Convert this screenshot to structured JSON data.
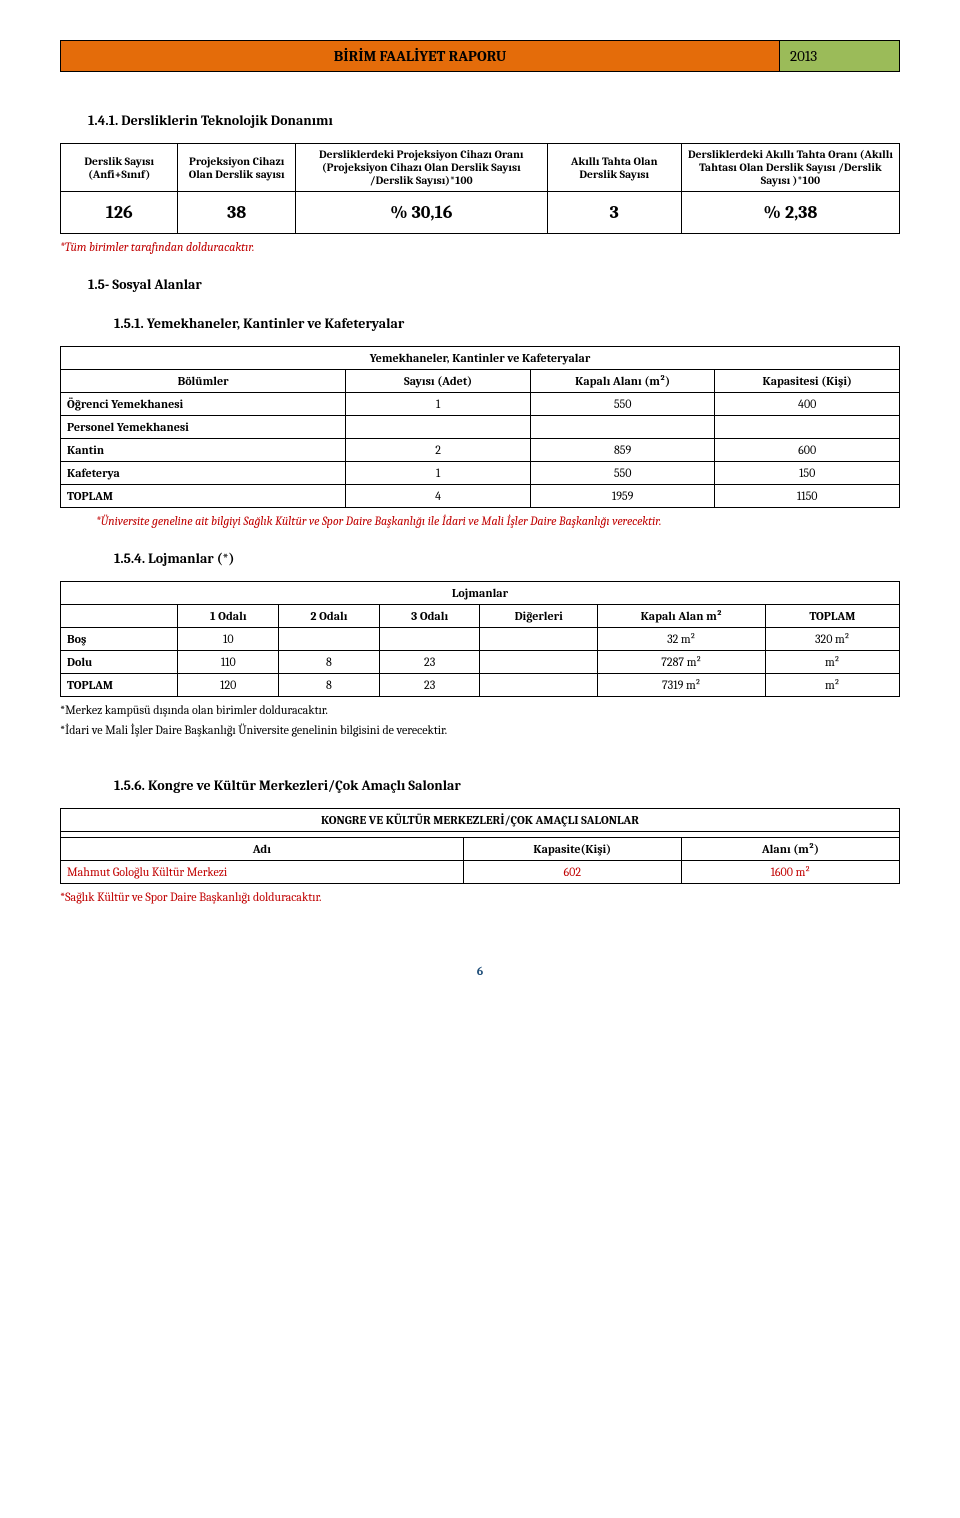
{
  "header": {
    "title": "BİRİM FAALİYET RAPORU",
    "year": "2013",
    "title_bg": "#e46c0a",
    "year_bg": "#9bbb59"
  },
  "sec1": {
    "heading": "1.4.1. Dersliklerin Teknolojik Donanımı",
    "headers": [
      "Derslik Sayısı (Anfi+Sınıf)",
      "Projeksiyon Cihazı Olan Derslik sayısı",
      "Dersliklerdeki Projeksiyon Cihazı Oranı (Projeksiyon Cihazı Olan Derslik Sayısı /Derslik Sayısı)*100",
      "Akıllı Tahta Olan Derslik Sayısı",
      "Dersliklerdeki Akıllı Tahta Oranı (Akıllı Tahtası Olan Derslik Sayısı /Derslik Sayısı )*100"
    ],
    "row": [
      "126",
      "38",
      "% 30,16",
      "3",
      "% 2,38"
    ],
    "note": "*Tüm birimler tarafından dolduracaktır."
  },
  "sec15": {
    "heading": "1.5- Sosyal Alanlar"
  },
  "sec151": {
    "heading": "1.5.1. Yemekhaneler, Kantinler ve Kafeteryalar",
    "caption": "Yemekhaneler, Kantinler ve Kafeteryalar",
    "cols": [
      "Bölümler",
      "Sayısı (Adet)",
      "Kapalı Alanı (m²)",
      "Kapasitesi (Kişi)"
    ],
    "rows": [
      [
        "Öğrenci Yemekhanesi",
        "1",
        "550",
        "400"
      ],
      [
        "Personel Yemekhanesi",
        "",
        "",
        ""
      ],
      [
        "Kantin",
        "2",
        "859",
        "600"
      ],
      [
        "Kafeterya",
        "1",
        "550",
        "150"
      ],
      [
        "TOPLAM",
        "4",
        "1959",
        "1150"
      ]
    ],
    "note": "*Üniversite geneline ait bilgiyi Sağlık Kültür ve Spor Daire Başkanlığı ile İdari ve Mali İşler Daire Başkanlığı  verecektir."
  },
  "sec154": {
    "heading": "1.5.4. Lojmanlar (*)",
    "caption": "Lojmanlar",
    "cols": [
      "",
      "1 Odalı",
      "2 Odalı",
      "3 Odalı",
      "Diğerleri",
      "Kapalı Alan m²",
      "TOPLAM"
    ],
    "rows": [
      [
        "Boş",
        "10",
        "",
        "",
        "",
        "32 m²",
        "320 m²"
      ],
      [
        "Dolu",
        "110",
        "8",
        "23",
        "",
        "7287 m²",
        "m²"
      ],
      [
        "TOPLAM",
        "120",
        "8",
        "23",
        "",
        "7319 m²",
        "m²"
      ]
    ],
    "note1": "*Merkez kampüsü dışında olan birimler dolduracaktır.",
    "note2": "*İdari ve Mali İşler Daire Başkanlığı Üniversite genelinin bilgisini de verecektir."
  },
  "sec156": {
    "heading": "1.5.6. Kongre ve Kültür Merkezleri/Çok Amaçlı Salonlar",
    "caption": "KONGRE VE KÜLTÜR MERKEZLERİ/ÇOK AMAÇLI SALONLAR",
    "cols": [
      "Adı",
      "Kapasite(Kişi)",
      "Alanı (m²)"
    ],
    "row": [
      "Mahmut Goloğlu Kültür Merkezi",
      "602",
      "1600 m²"
    ],
    "note": "*Sağlık Kültür ve Spor Daire Başkanlığı dolduracaktır."
  },
  "pageNumber": "6"
}
